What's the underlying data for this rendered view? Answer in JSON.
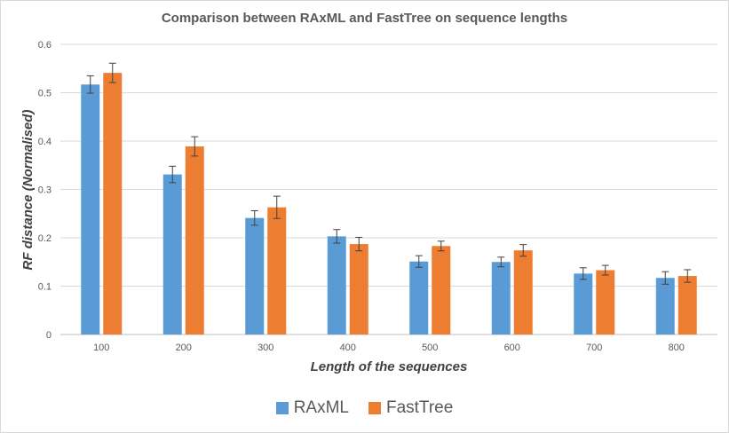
{
  "chart_data": {
    "type": "bar",
    "title": "Comparison between RAxML and FastTree on sequence lengths",
    "xlabel": "Length of the sequences",
    "ylabel": "RF distance (Normalised)",
    "categories": [
      "100",
      "200",
      "300",
      "400",
      "500",
      "600",
      "700",
      "800"
    ],
    "ylim": [
      0,
      0.6
    ],
    "yticks": [
      "0",
      "0.1",
      "0.2",
      "0.3",
      "0.4",
      "0.5",
      "0.6"
    ],
    "grid": true,
    "legend_position": "bottom",
    "series": [
      {
        "name": "RAxML",
        "color": "#5b9bd5",
        "values": [
          0.517,
          0.331,
          0.241,
          0.203,
          0.151,
          0.15,
          0.126,
          0.117
        ],
        "errors": [
          0.018,
          0.017,
          0.015,
          0.014,
          0.012,
          0.01,
          0.012,
          0.013
        ]
      },
      {
        "name": "FastTree",
        "color": "#ed7d31",
        "values": [
          0.541,
          0.389,
          0.263,
          0.187,
          0.183,
          0.174,
          0.133,
          0.121
        ],
        "errors": [
          0.02,
          0.02,
          0.023,
          0.014,
          0.01,
          0.012,
          0.01,
          0.013
        ]
      }
    ]
  }
}
